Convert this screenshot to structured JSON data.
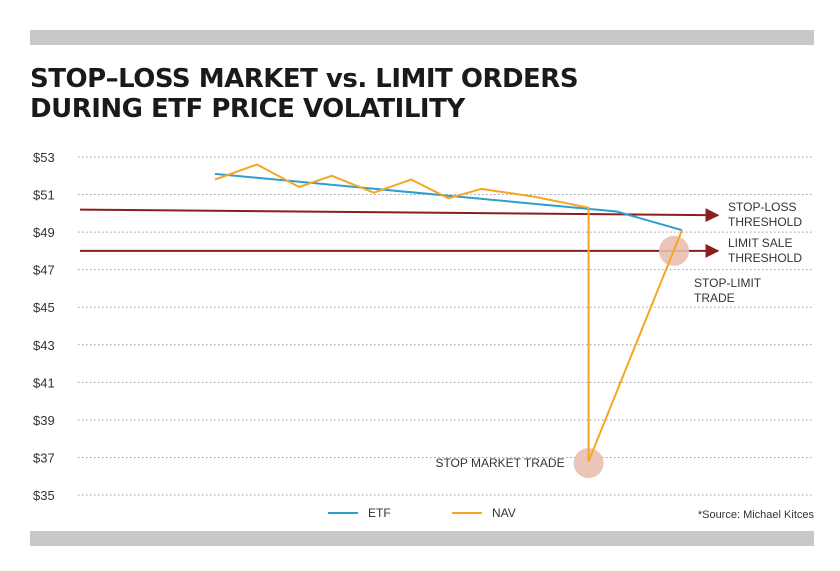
{
  "chart_data": {
    "type": "line",
    "title_lines": [
      "STOP–LOSS MARKET vs. LIMIT ORDERS",
      "DURING ETF PRICE VOLATILITY"
    ],
    "ylim": [
      35,
      53
    ],
    "y_ticks": [
      53,
      51,
      49,
      47,
      45,
      43,
      41,
      39,
      37,
      35
    ],
    "y_tick_labels": [
      "$53",
      "$51",
      "$49",
      "$47",
      "$45",
      "$43",
      "$41",
      "$39",
      "$37",
      "$35"
    ],
    "xlim": [
      0,
      10
    ],
    "series": [
      {
        "name": "ETF",
        "color": "#2b9fd0",
        "x": [
          0,
          8.6,
          10
        ],
        "y": [
          52.1,
          50.1,
          49.1
        ]
      },
      {
        "name": "NAV",
        "color": "#f5a623",
        "x": [
          0,
          0.9,
          1.8,
          2.5,
          3.4,
          4.2,
          5.0,
          5.7,
          6.8,
          8.0,
          8.0,
          10.0
        ],
        "y": [
          51.8,
          52.6,
          51.4,
          52.0,
          51.1,
          51.8,
          50.8,
          51.3,
          50.9,
          50.3,
          36.8,
          49.1
        ]
      }
    ],
    "thresholds": [
      {
        "label_lines": [
          "STOP-LOSS",
          "THRESHOLD"
        ],
        "color": "#8b1e1e",
        "y_start": 50.2,
        "y_end": 49.9
      },
      {
        "label_lines": [
          "LIMIT SALE",
          "THRESHOLD"
        ],
        "color": "#8b1e1e",
        "y_start": 48.0,
        "y_end": 48.0
      }
    ],
    "markers": [
      {
        "label_lines": [
          "STOP-LIMIT",
          "TRADE"
        ],
        "x": 9.8,
        "y": 48.0,
        "color": "#e8bfb0"
      },
      {
        "label_lines": [
          "STOP MARKET TRADE"
        ],
        "x": 8.0,
        "y": 36.7,
        "color": "#e8bfb0"
      }
    ],
    "legend": [
      "ETF",
      "NAV"
    ],
    "legend_placement": "bottom",
    "grid": "dotted horizontal",
    "source": "*Source: Michael Kitces"
  }
}
